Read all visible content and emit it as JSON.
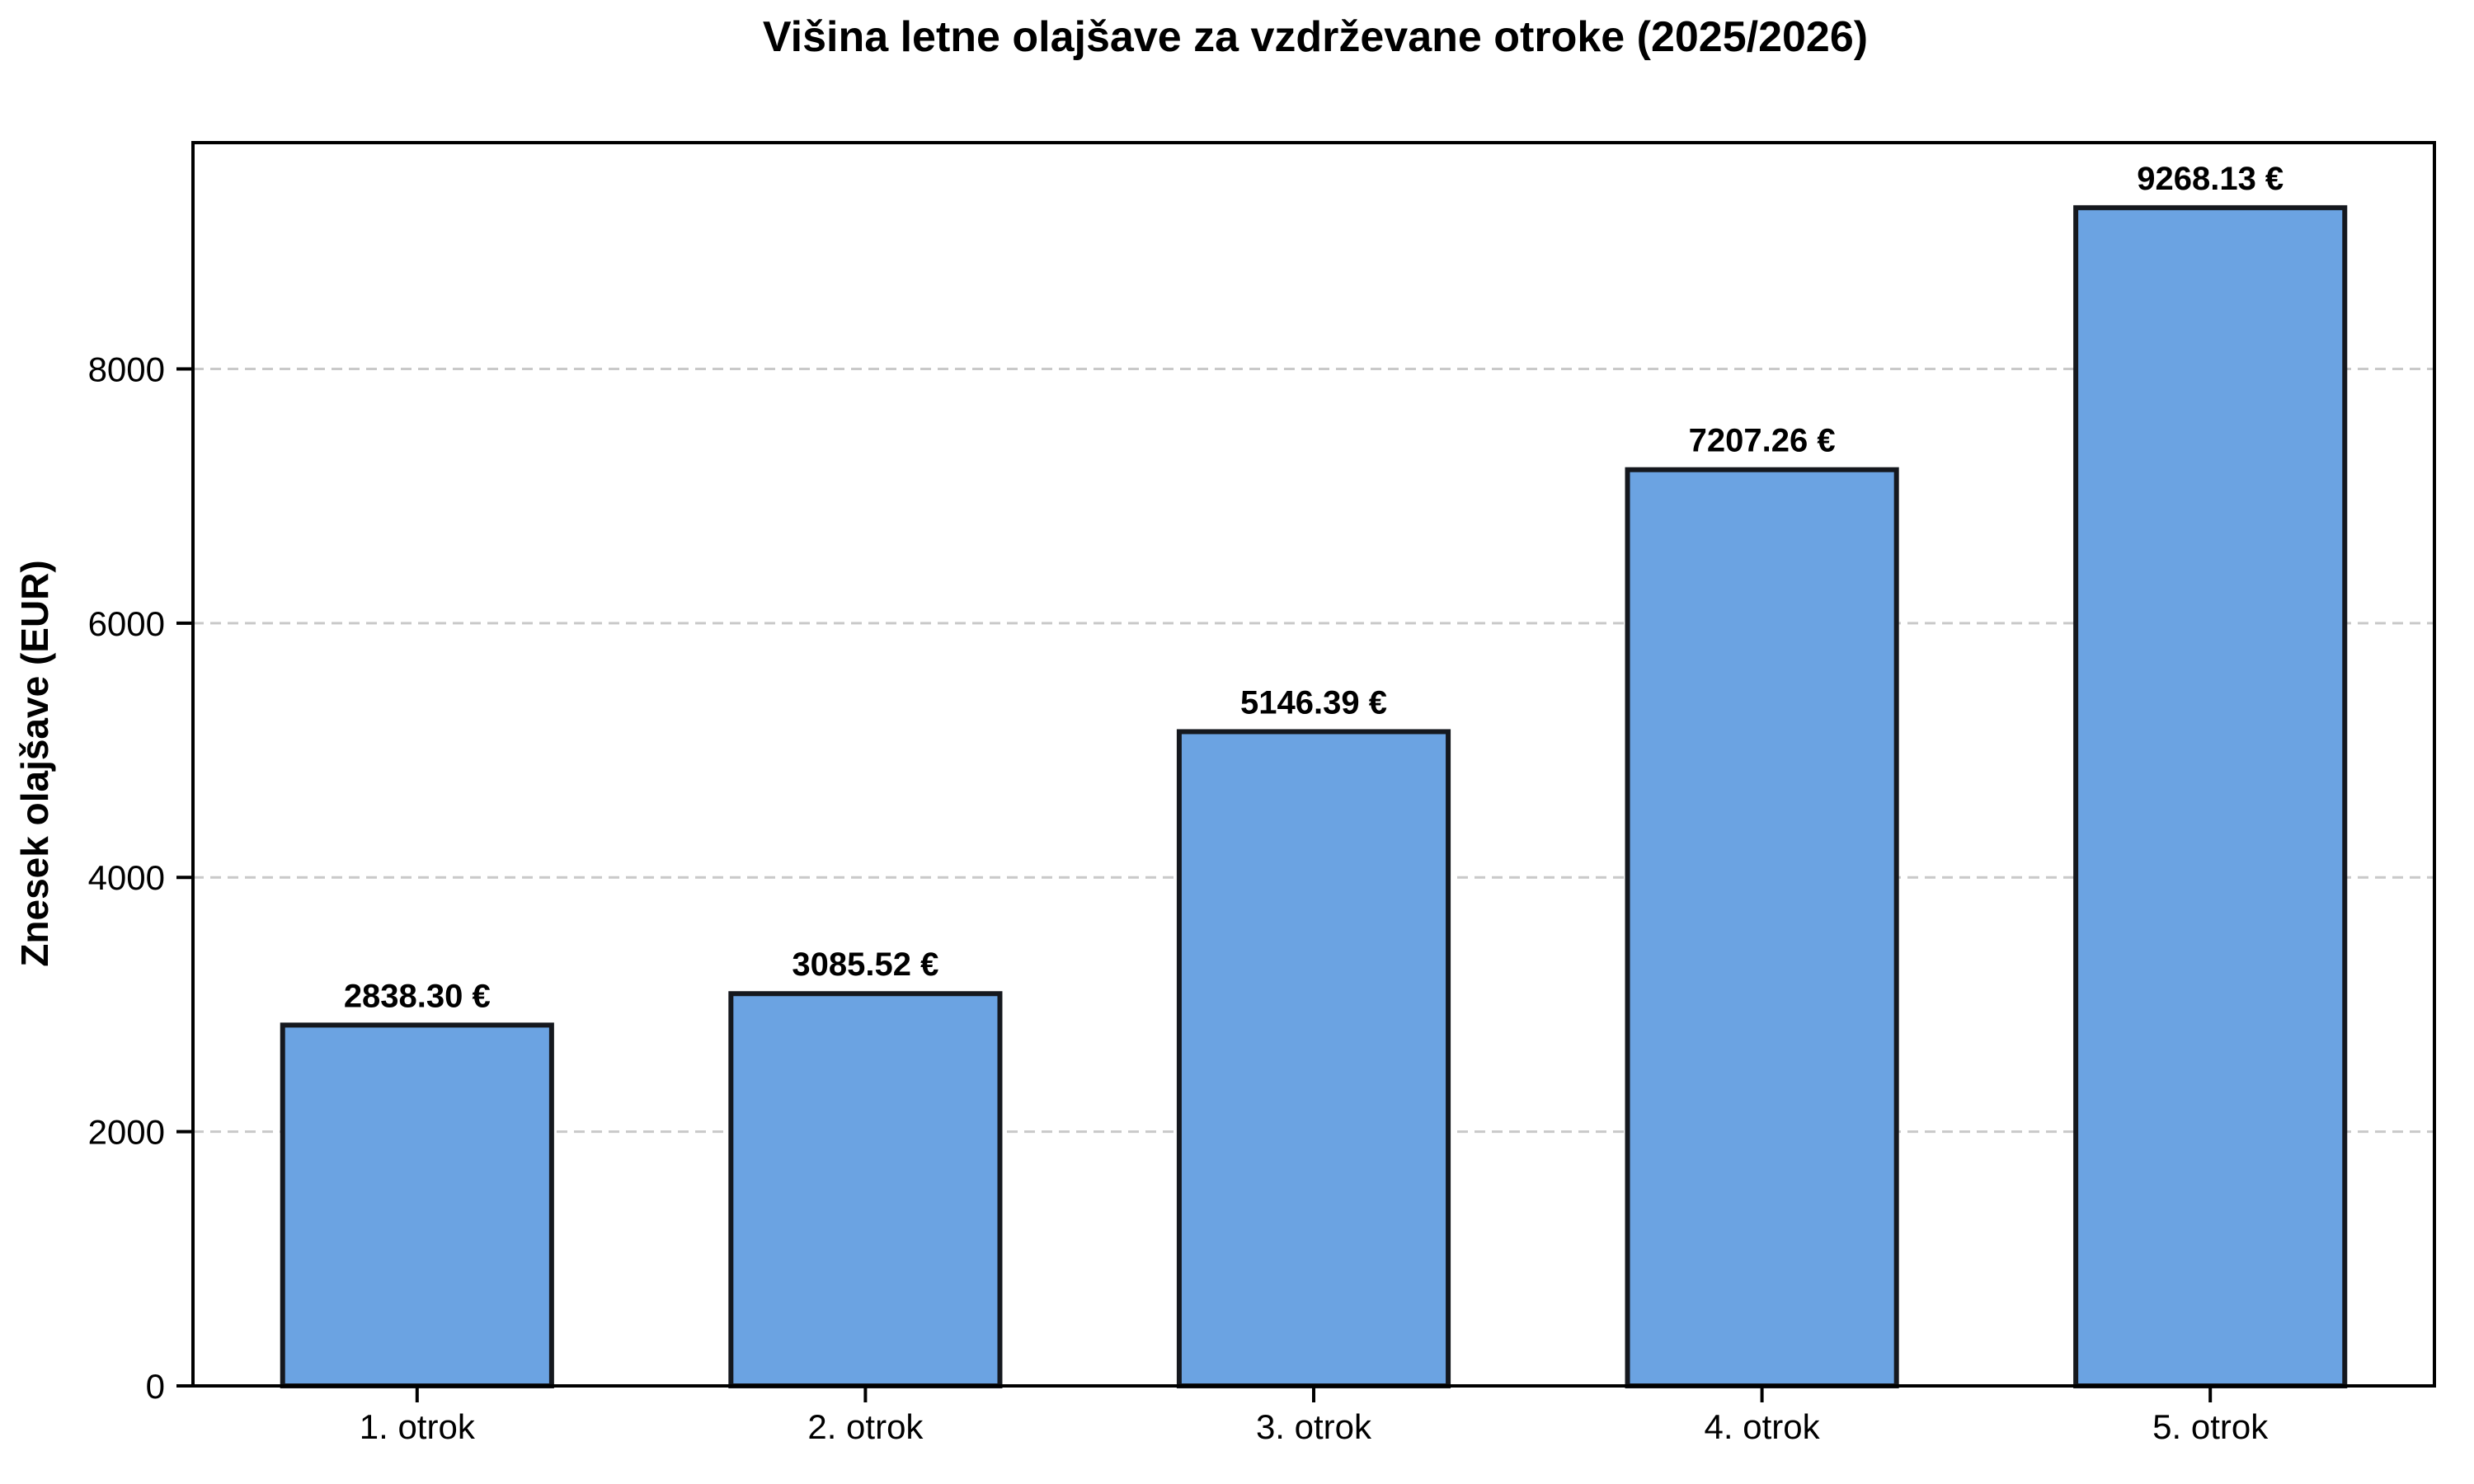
{
  "chart_data": {
    "type": "bar",
    "title": "Višina letne olajšave za vzdrževane otroke (2025/2026)",
    "xlabel": "",
    "ylabel": "Znesek olajšave (EUR)",
    "categories": [
      "1. otrok",
      "2. otrok",
      "3. otrok",
      "4. otrok",
      "5. otrok"
    ],
    "values": [
      2838.3,
      3085.52,
      5146.39,
      7207.26,
      9268.13
    ],
    "value_labels": [
      "2838.30 €",
      "3085.52 €",
      "5146.39 €",
      "7207.26 €",
      "9268.13 €"
    ],
    "yticks": [
      0,
      2000,
      4000,
      6000,
      8000
    ],
    "ylim": [
      0,
      9780
    ],
    "bar_width_fraction": 0.6,
    "grid": "horizontal-dashed",
    "legend": "none",
    "colors": {
      "bar_fill": "#6BA3E2",
      "bar_edge": "#15181E",
      "grid": "#C9C9C9",
      "axis": "#000000",
      "text": "#000000",
      "background": "#FFFFFF"
    }
  }
}
